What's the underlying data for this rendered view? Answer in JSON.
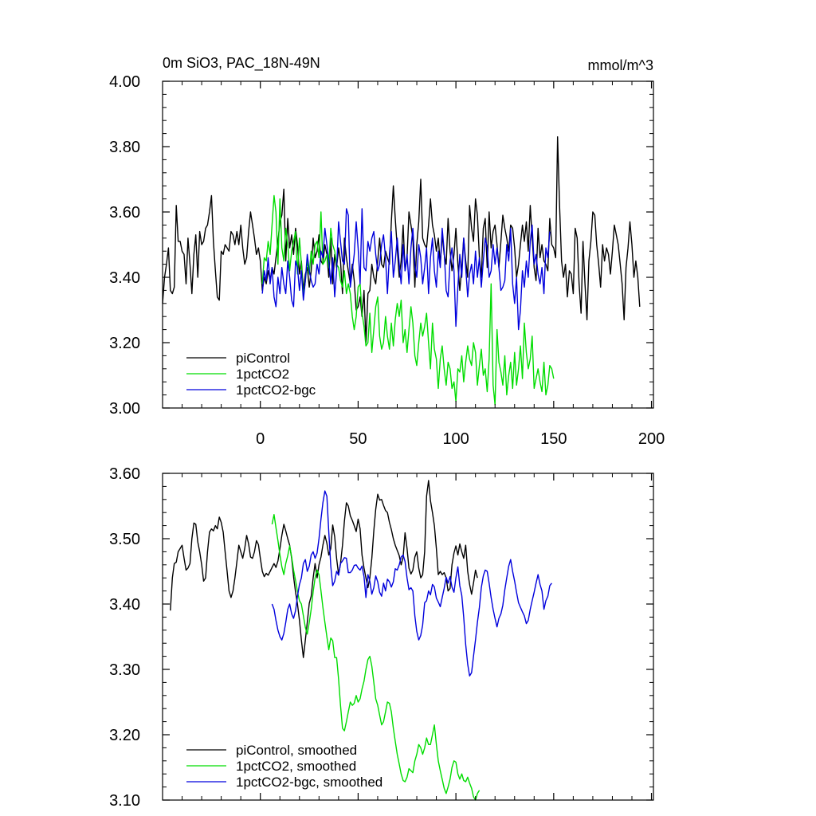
{
  "chart_data": [
    {
      "type": "line",
      "title": "0m SiO3, PAC_18N-49N",
      "units": "mmol/m^3",
      "xlabel": "",
      "ylabel": "",
      "xlim": [
        -50,
        201
      ],
      "ylim": [
        3.0,
        4.0
      ],
      "xticks": [
        "0",
        "50",
        "100",
        "150",
        "200"
      ],
      "yticks": [
        "3.00",
        "3.20",
        "3.40",
        "3.60",
        "3.80",
        "4.00"
      ],
      "legend": "bottom-left",
      "series": [
        {
          "name": "piControl",
          "color": "#000000",
          "x_start": -50,
          "values": [
            3.32,
            3.4,
            3.44,
            3.49,
            3.36,
            3.35,
            3.37,
            3.62,
            3.51,
            3.51,
            3.48,
            3.47,
            3.38,
            3.52,
            3.44,
            3.35,
            3.47,
            3.53,
            3.4,
            3.54,
            3.5,
            3.51,
            3.55,
            3.56,
            3.6,
            3.65,
            3.51,
            3.42,
            3.34,
            3.33,
            3.48,
            3.47,
            3.5,
            3.49,
            3.48,
            3.54,
            3.53,
            3.5,
            3.54,
            3.5,
            3.56,
            3.49,
            3.44,
            3.46,
            3.54,
            3.6,
            3.56,
            3.52,
            3.47,
            3.49,
            3.45,
            3.36,
            3.4,
            3.38,
            3.42,
            3.39,
            3.43,
            3.41,
            3.46,
            3.51,
            3.57,
            3.59,
            3.67,
            3.45,
            3.58,
            3.49,
            3.53,
            3.47,
            3.55,
            3.5,
            3.41,
            3.45,
            3.36,
            3.41,
            3.43,
            3.37,
            3.42,
            3.52,
            3.46,
            3.48,
            3.53,
            3.45,
            3.44,
            3.5,
            3.47,
            3.4,
            3.52,
            3.38,
            3.47,
            3.43,
            3.49,
            3.45,
            3.35,
            3.52,
            3.46,
            3.42,
            3.38,
            3.44,
            3.39,
            3.3,
            3.31,
            3.34,
            3.28,
            3.36,
            3.2,
            3.35,
            3.36,
            3.44,
            3.4,
            3.38,
            3.45,
            3.52,
            3.44,
            3.43,
            3.48,
            3.46,
            3.44,
            3.57,
            3.68,
            3.58,
            3.49,
            3.4,
            3.45,
            3.56,
            3.42,
            3.46,
            3.6,
            3.56,
            3.52,
            3.37,
            3.5,
            3.57,
            3.7,
            3.52,
            3.5,
            3.49,
            3.56,
            3.64,
            3.56,
            3.53,
            3.48,
            3.52,
            3.44,
            3.53,
            3.47,
            3.44,
            3.58,
            3.48,
            3.42,
            3.47,
            3.55,
            3.44,
            3.36,
            3.43,
            3.52,
            3.45,
            3.4,
            3.62,
            3.55,
            3.51,
            3.64,
            3.59,
            3.46,
            3.4,
            3.55,
            3.58,
            3.43,
            3.6,
            3.49,
            3.54,
            3.56,
            3.5,
            3.43,
            3.51,
            3.59,
            3.55,
            3.52,
            3.48,
            3.56,
            3.55,
            3.49,
            3.4,
            3.44,
            3.5,
            3.56,
            3.51,
            3.57,
            3.48,
            3.62,
            3.52,
            3.43,
            3.39,
            3.55,
            3.46,
            3.5,
            3.45,
            3.44,
            3.42,
            3.58,
            3.5,
            3.49,
            3.46,
            3.83,
            3.62,
            3.45,
            3.4,
            3.44,
            3.34,
            3.42,
            3.41,
            3.35,
            3.55,
            3.52,
            3.38,
            3.29,
            3.51,
            3.38,
            3.27,
            3.45,
            3.51,
            3.6,
            3.59,
            3.5,
            3.44,
            3.37,
            3.5,
            3.45,
            3.49,
            3.47,
            3.41,
            3.48,
            3.56,
            3.53,
            3.5,
            3.44,
            3.38,
            3.27,
            3.43,
            3.49,
            3.57,
            3.5,
            3.4,
            3.45,
            3.4,
            3.31
          ]
        },
        {
          "name": "1pctCO2",
          "color": "#00dd00",
          "x_start": 1,
          "values": [
            3.38,
            3.46,
            3.45,
            3.51,
            3.47,
            3.56,
            3.65,
            3.6,
            3.44,
            3.64,
            3.49,
            3.45,
            3.55,
            3.5,
            3.42,
            3.48,
            3.51,
            3.54,
            3.41,
            3.52,
            3.44,
            3.34,
            3.39,
            3.45,
            3.41,
            3.48,
            3.44,
            3.5,
            3.51,
            3.46,
            3.6,
            3.44,
            3.45,
            3.47,
            3.43,
            3.55,
            3.5,
            3.48,
            3.44,
            3.43,
            3.39,
            3.37,
            3.42,
            3.35,
            3.38,
            3.35,
            3.28,
            3.24,
            3.28,
            3.37,
            3.38,
            3.29,
            3.25,
            3.19,
            3.2,
            3.29,
            3.17,
            3.24,
            3.31,
            3.34,
            3.22,
            3.18,
            3.2,
            3.28,
            3.22,
            3.18,
            3.26,
            3.19,
            3.27,
            3.32,
            3.28,
            3.33,
            3.2,
            3.24,
            3.17,
            3.24,
            3.31,
            3.26,
            3.16,
            3.13,
            3.2,
            3.26,
            3.22,
            3.25,
            3.29,
            3.2,
            3.12,
            3.26,
            3.18,
            3.15,
            3.06,
            3.15,
            3.19,
            3.12,
            3.07,
            3.14,
            3.12,
            3.06,
            3.08,
            3.02,
            3.12,
            3.11,
            3.16,
            3.08,
            3.14,
            3.19,
            3.15,
            3.13,
            3.2,
            3.17,
            3.07,
            3.13,
            3.18,
            3.1,
            3.12,
            3.05,
            3.15,
            3.38,
            3.07,
            3.01,
            3.24,
            3.14,
            3.11,
            3.07,
            3.16,
            3.04,
            3.1,
            3.14,
            3.06,
            3.17,
            3.07,
            3.12,
            3.19,
            3.09,
            3.26,
            3.17,
            3.12,
            3.15,
            3.22,
            3.06,
            3.09,
            3.12,
            3.08,
            3.05,
            3.14,
            3.04,
            3.07,
            3.13,
            3.12,
            3.09
          ]
        },
        {
          "name": "1pctCO2-bgc",
          "color": "#0000dd",
          "x_start": 1,
          "values": [
            3.35,
            3.42,
            3.39,
            3.46,
            3.38,
            3.43,
            3.34,
            3.31,
            3.4,
            3.35,
            3.43,
            3.38,
            3.35,
            3.45,
            3.4,
            3.33,
            3.31,
            3.45,
            3.43,
            3.36,
            3.42,
            3.33,
            3.39,
            3.47,
            3.42,
            3.39,
            3.37,
            3.38,
            3.44,
            3.41,
            3.48,
            3.46,
            3.55,
            3.5,
            3.45,
            3.38,
            3.46,
            3.34,
            3.42,
            3.57,
            3.51,
            3.45,
            3.44,
            3.61,
            3.59,
            3.37,
            3.42,
            3.47,
            3.57,
            3.49,
            3.38,
            3.61,
            3.43,
            3.42,
            3.51,
            3.48,
            3.52,
            3.54,
            3.47,
            3.42,
            3.44,
            3.5,
            3.53,
            3.46,
            3.35,
            3.47,
            3.54,
            3.4,
            3.45,
            3.52,
            3.44,
            3.38,
            3.5,
            3.42,
            3.47,
            3.38,
            3.49,
            3.55,
            3.44,
            3.4,
            3.5,
            3.46,
            3.38,
            3.43,
            3.49,
            3.35,
            3.46,
            3.52,
            3.42,
            3.37,
            3.48,
            3.43,
            3.55,
            3.48,
            3.36,
            3.34,
            3.45,
            3.49,
            3.42,
            3.25,
            3.37,
            3.47,
            3.4,
            3.52,
            3.43,
            3.34,
            3.41,
            3.44,
            3.38,
            3.48,
            3.4,
            3.46,
            3.37,
            3.45,
            3.52,
            3.49,
            3.4,
            3.42,
            3.5,
            3.44,
            3.49,
            3.43,
            3.36,
            3.37,
            3.39,
            3.5,
            3.45,
            3.55,
            3.38,
            3.32,
            3.4,
            3.24,
            3.3,
            3.42,
            3.37,
            3.45,
            3.4,
            3.51,
            3.56,
            3.44,
            3.47,
            3.41,
            3.38,
            3.43,
            3.35,
            3.49,
            3.46,
            3.54
          ]
        }
      ]
    },
    {
      "type": "line",
      "title": "",
      "xlabel": "",
      "ylabel": "",
      "xlim": [
        -50,
        201
      ],
      "ylim": [
        3.1,
        3.6
      ],
      "yticks": [
        "3.10",
        "3.20",
        "3.30",
        "3.40",
        "3.50",
        "3.60"
      ],
      "legend": "bottom-left",
      "series": [
        {
          "name": "piControl, smoothed",
          "color": "#000000",
          "x_start": -46,
          "values": [
            3.39,
            3.44,
            3.462,
            3.464,
            3.48,
            3.485,
            3.49,
            3.47,
            3.452,
            3.455,
            3.462,
            3.5,
            3.524,
            3.522,
            3.495,
            3.48,
            3.46,
            3.435,
            3.44,
            3.48,
            3.51,
            3.515,
            3.512,
            3.52,
            3.515,
            3.533,
            3.525,
            3.51,
            3.48,
            3.45,
            3.42,
            3.41,
            3.42,
            3.44,
            3.465,
            3.49,
            3.48,
            3.47,
            3.485,
            3.505,
            3.492,
            3.472,
            3.47,
            3.48,
            3.497,
            3.491,
            3.47,
            3.45,
            3.442,
            3.447,
            3.444,
            3.45,
            3.456,
            3.462,
            3.456,
            3.466,
            3.485,
            3.505,
            3.522,
            3.512,
            3.5,
            3.49,
            3.47,
            3.442,
            3.418,
            3.4,
            3.375,
            3.345,
            3.318,
            3.345,
            3.372,
            3.401,
            3.412,
            3.44,
            3.462,
            3.44,
            3.46,
            3.472,
            3.49,
            3.505,
            3.493,
            3.475,
            3.485,
            3.521,
            3.503,
            3.47,
            3.445,
            3.462,
            3.49,
            3.527,
            3.555,
            3.55,
            3.535,
            3.528,
            3.52,
            3.511,
            3.53,
            3.515,
            3.475,
            3.455,
            3.44,
            3.425,
            3.44,
            3.47,
            3.512,
            3.545,
            3.568,
            3.559,
            3.56,
            3.551,
            3.543,
            3.54,
            3.525,
            3.514,
            3.5,
            3.49,
            3.482,
            3.474,
            3.46,
            3.472,
            3.509,
            3.485,
            3.455,
            3.446,
            3.452,
            3.472,
            3.48,
            3.455,
            3.44,
            3.445,
            3.48,
            3.565,
            3.589,
            3.558,
            3.54,
            3.52,
            3.485,
            3.445,
            3.45,
            3.445,
            3.448,
            3.44,
            3.42,
            3.424,
            3.46,
            3.478,
            3.489,
            3.475,
            3.492,
            3.48,
            3.47,
            3.49,
            3.45,
            3.43,
            3.415,
            3.432,
            3.452,
            3.44
          ]
        },
        {
          "name": "1pctCO2, smoothed",
          "color": "#00dd00",
          "x_start": 6,
          "values": [
            3.522,
            3.537,
            3.517,
            3.497,
            3.475,
            3.457,
            3.445,
            3.462,
            3.474,
            3.489,
            3.472,
            3.452,
            3.436,
            3.419,
            3.405,
            3.4,
            3.382,
            3.364,
            3.354,
            3.372,
            3.392,
            3.419,
            3.44,
            3.452,
            3.445,
            3.42,
            3.395,
            3.372,
            3.35,
            3.33,
            3.348,
            3.344,
            3.318,
            3.318,
            3.285,
            3.245,
            3.21,
            3.206,
            3.22,
            3.235,
            3.25,
            3.245,
            3.248,
            3.26,
            3.25,
            3.255,
            3.27,
            3.282,
            3.3,
            3.315,
            3.32,
            3.305,
            3.28,
            3.255,
            3.245,
            3.23,
            3.215,
            3.22,
            3.235,
            3.25,
            3.248,
            3.235,
            3.21,
            3.19,
            3.17,
            3.155,
            3.14,
            3.13,
            3.128,
            3.135,
            3.148,
            3.145,
            3.142,
            3.16,
            3.17,
            3.185,
            3.18,
            3.17,
            3.18,
            3.195,
            3.185,
            3.185,
            3.2,
            3.215,
            3.185,
            3.16,
            3.145,
            3.132,
            3.118,
            3.11,
            3.12,
            3.132,
            3.15,
            3.16,
            3.158,
            3.14,
            3.132,
            3.14,
            3.13,
            3.128,
            3.135,
            3.126,
            3.118,
            3.105,
            3.1,
            3.11,
            3.115
          ]
        },
        {
          "name": "1pctCO2-bgc, smoothed",
          "color": "#0000dd",
          "x_start": 6,
          "values": [
            3.4,
            3.392,
            3.375,
            3.36,
            3.35,
            3.345,
            3.355,
            3.372,
            3.392,
            3.4,
            3.385,
            3.378,
            3.39,
            3.412,
            3.43,
            3.44,
            3.462,
            3.468,
            3.45,
            3.458,
            3.475,
            3.48,
            3.47,
            3.478,
            3.5,
            3.53,
            3.555,
            3.573,
            3.565,
            3.51,
            3.458,
            3.428,
            3.435,
            3.45,
            3.444,
            3.462,
            3.466,
            3.471,
            3.47,
            3.448,
            3.448,
            3.452,
            3.459,
            3.46,
            3.455,
            3.452,
            3.458,
            3.442,
            3.41,
            3.445,
            3.435,
            3.415,
            3.425,
            3.443,
            3.434,
            3.418,
            3.412,
            3.432,
            3.42,
            3.438,
            3.434,
            3.426,
            3.434,
            3.454,
            3.452,
            3.46,
            3.472,
            3.475,
            3.465,
            3.44,
            3.422,
            3.425,
            3.42,
            3.382,
            3.358,
            3.345,
            3.352,
            3.368,
            3.402,
            3.405,
            3.42,
            3.414,
            3.43,
            3.426,
            3.409,
            3.403,
            3.396,
            3.41,
            3.424,
            3.441,
            3.432,
            3.442,
            3.426,
            3.418,
            3.44,
            3.457,
            3.428,
            3.413,
            3.38,
            3.338,
            3.308,
            3.29,
            3.295,
            3.32,
            3.345,
            3.372,
            3.395,
            3.425,
            3.443,
            3.452,
            3.45,
            3.432,
            3.41,
            3.392,
            3.378,
            3.365,
            3.378,
            3.385,
            3.398,
            3.422,
            3.44,
            3.458,
            3.468,
            3.45,
            3.435,
            3.418,
            3.402,
            3.395,
            3.388,
            3.382,
            3.37,
            3.375,
            3.392,
            3.405,
            3.418,
            3.432,
            3.445,
            3.43,
            3.42,
            3.392,
            3.405,
            3.412,
            3.428,
            3.432
          ]
        }
      ]
    }
  ]
}
